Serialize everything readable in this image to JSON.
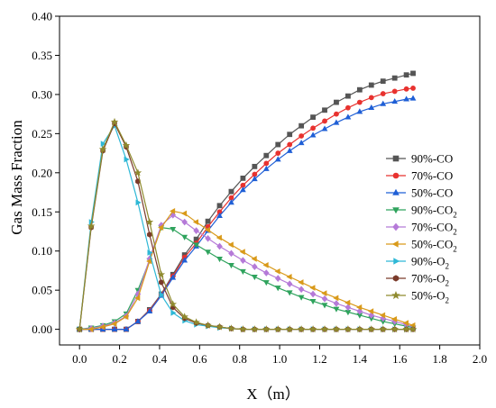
{
  "chart_data": {
    "type": "line",
    "title": "",
    "xlabel": "X（m）",
    "ylabel": "Gas Mass Fraction",
    "xlim": [
      -0.1,
      2.0
    ],
    "ylim": [
      -0.02,
      0.4
    ],
    "xticks": [
      "0.0",
      "0.2",
      "0.4",
      "0.6",
      "0.8",
      "1.0",
      "1.2",
      "1.4",
      "1.6",
      "1.8",
      "2.0"
    ],
    "yticks": [
      "0.00",
      "0.05",
      "0.10",
      "0.15",
      "0.20",
      "0.25",
      "0.30",
      "0.35",
      "0.40"
    ],
    "legend_position": "right",
    "x": [
      0.0,
      0.0583,
      0.1167,
      0.175,
      0.2333,
      0.2917,
      0.35,
      0.4083,
      0.4667,
      0.525,
      0.5833,
      0.6417,
      0.7,
      0.7583,
      0.8167,
      0.875,
      0.9333,
      0.9917,
      1.05,
      1.1083,
      1.1667,
      1.225,
      1.2833,
      1.3417,
      1.4,
      1.4583,
      1.5167,
      1.575,
      1.6333,
      1.6667
    ],
    "series": [
      {
        "name": "90%-CO",
        "label_main": "90%-CO",
        "label_sub": "",
        "color": "#555555",
        "marker": "square",
        "values": [
          0.0,
          0.0,
          0.0,
          0.0,
          0.0,
          0.01,
          0.025,
          0.045,
          0.07,
          0.095,
          0.115,
          0.138,
          0.158,
          0.176,
          0.193,
          0.208,
          0.222,
          0.236,
          0.249,
          0.26,
          0.271,
          0.28,
          0.29,
          0.298,
          0.306,
          0.312,
          0.317,
          0.321,
          0.325,
          0.327
        ]
      },
      {
        "name": "70%-CO",
        "label_main": "70%-CO",
        "label_sub": "",
        "color": "#e8322f",
        "marker": "circle",
        "values": [
          0.0,
          0.0,
          0.0,
          0.0,
          0.0,
          0.01,
          0.024,
          0.044,
          0.068,
          0.092,
          0.11,
          0.131,
          0.15,
          0.168,
          0.184,
          0.198,
          0.212,
          0.225,
          0.236,
          0.247,
          0.257,
          0.266,
          0.275,
          0.283,
          0.29,
          0.296,
          0.301,
          0.304,
          0.307,
          0.308
        ]
      },
      {
        "name": "50%-CO",
        "label_main": "50%-CO",
        "label_sub": "",
        "color": "#1f5fd6",
        "marker": "triangle-up",
        "values": [
          0.0,
          0.0,
          0.0,
          0.0,
          0.0,
          0.01,
          0.023,
          0.043,
          0.066,
          0.088,
          0.106,
          0.126,
          0.145,
          0.162,
          0.178,
          0.192,
          0.205,
          0.217,
          0.228,
          0.238,
          0.248,
          0.256,
          0.264,
          0.271,
          0.278,
          0.283,
          0.288,
          0.291,
          0.294,
          0.295
        ]
      },
      {
        "name": "90%-CO2",
        "label_main": "90%-CO",
        "label_sub": "2",
        "color": "#2fa35d",
        "marker": "triangle-down",
        "values": [
          0.0,
          0.002,
          0.005,
          0.01,
          0.02,
          0.05,
          0.088,
          0.13,
          0.128,
          0.118,
          0.108,
          0.099,
          0.09,
          0.082,
          0.074,
          0.067,
          0.06,
          0.053,
          0.047,
          0.041,
          0.036,
          0.031,
          0.026,
          0.022,
          0.018,
          0.014,
          0.01,
          0.007,
          0.004,
          0.002
        ]
      },
      {
        "name": "70%-CO2",
        "label_main": "70%-CO",
        "label_sub": "2",
        "color": "#b57ad8",
        "marker": "diamond",
        "values": [
          0.0,
          0.001,
          0.004,
          0.008,
          0.017,
          0.045,
          0.09,
          0.133,
          0.146,
          0.137,
          0.126,
          0.116,
          0.106,
          0.097,
          0.088,
          0.08,
          0.072,
          0.065,
          0.058,
          0.051,
          0.045,
          0.039,
          0.033,
          0.028,
          0.023,
          0.018,
          0.014,
          0.01,
          0.006,
          0.003
        ]
      },
      {
        "name": "50%-CO2",
        "label_main": "50%-CO",
        "label_sub": "2",
        "color": "#d99a1a",
        "marker": "triangle-left",
        "values": [
          0.0,
          0.0,
          0.003,
          0.007,
          0.016,
          0.04,
          0.087,
          0.13,
          0.151,
          0.148,
          0.137,
          0.127,
          0.117,
          0.108,
          0.099,
          0.09,
          0.082,
          0.074,
          0.067,
          0.06,
          0.053,
          0.046,
          0.04,
          0.034,
          0.028,
          0.023,
          0.018,
          0.013,
          0.008,
          0.005
        ]
      },
      {
        "name": "90%-O2",
        "label_main": "90%-O",
        "label_sub": "2",
        "color": "#2fb8d6",
        "marker": "triangle-right",
        "values": [
          0.0,
          0.137,
          0.237,
          0.26,
          0.217,
          0.162,
          0.098,
          0.044,
          0.021,
          0.011,
          0.006,
          0.004,
          0.002,
          0.001,
          0.0,
          0.0,
          0.0,
          0.0,
          0.0,
          0.0,
          0.0,
          0.0,
          0.0,
          0.0,
          0.0,
          0.0,
          0.0,
          0.0,
          0.0,
          0.0
        ]
      },
      {
        "name": "70%-O2",
        "label_main": "70%-O",
        "label_sub": "2",
        "color": "#7a3a2a",
        "marker": "hexagon",
        "values": [
          0.0,
          0.13,
          0.228,
          0.263,
          0.233,
          0.189,
          0.121,
          0.06,
          0.028,
          0.014,
          0.008,
          0.005,
          0.003,
          0.001,
          0.0,
          0.0,
          0.0,
          0.0,
          0.0,
          0.0,
          0.0,
          0.0,
          0.0,
          0.0,
          0.0,
          0.0,
          0.0,
          0.0,
          0.0,
          0.0
        ]
      },
      {
        "name": "50%-O2",
        "label_main": "50%-O",
        "label_sub": "2",
        "color": "#8f8a2e",
        "marker": "star",
        "values": [
          0.0,
          0.132,
          0.23,
          0.265,
          0.235,
          0.2,
          0.137,
          0.07,
          0.032,
          0.016,
          0.009,
          0.005,
          0.003,
          0.001,
          0.0,
          0.0,
          0.0,
          0.0,
          0.0,
          0.0,
          0.0,
          0.0,
          0.0,
          0.0,
          0.0,
          0.0,
          0.0,
          0.0,
          0.0,
          0.0
        ]
      }
    ]
  }
}
